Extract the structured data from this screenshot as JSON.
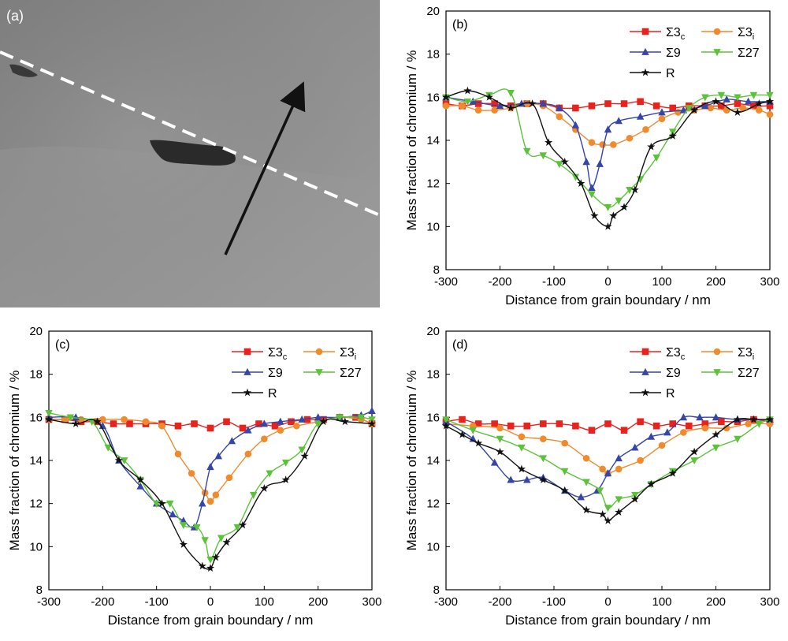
{
  "micrograph": {
    "label": "(a)",
    "colors": {
      "background": "#8f8f8f",
      "boundary_line": "#ffffff",
      "arrow": "#111111",
      "precipitate": "#2b2b2b"
    }
  },
  "series_style": {
    "S3c": {
      "color": "#e8231d",
      "marker": "square"
    },
    "S3i": {
      "color": "#f08a2c",
      "marker": "circle"
    },
    "S9": {
      "color": "#3545a8",
      "marker": "triangle-up"
    },
    "S27": {
      "color": "#5cc23a",
      "marker": "triangle-down"
    },
    "R": {
      "color": "#111111",
      "marker": "star"
    }
  },
  "chart_data": [
    {
      "panel": "(b)",
      "type": "line",
      "xlabel": "Distance from grain boundary / nm",
      "ylabel": "Mass fraction of chromium / %",
      "xlim": [
        -300,
        300
      ],
      "ylim": [
        8,
        20
      ],
      "xticks": [
        -300,
        -200,
        -100,
        0,
        100,
        200,
        300
      ],
      "yticks": [
        8,
        10,
        12,
        14,
        16,
        18,
        20
      ],
      "legend": "top-right",
      "series": [
        {
          "key": "S3c",
          "name": "Σ3",
          "sub": "c",
          "x": [
            -300,
            -270,
            -240,
            -210,
            -180,
            -150,
            -120,
            -90,
            -60,
            -30,
            0,
            30,
            60,
            90,
            120,
            150,
            180,
            210,
            240,
            270,
            300
          ],
          "y": [
            15.7,
            15.6,
            15.7,
            15.7,
            15.6,
            15.7,
            15.7,
            15.5,
            15.5,
            15.6,
            15.7,
            15.7,
            15.8,
            15.6,
            15.5,
            15.6,
            15.6,
            15.6,
            15.7,
            15.6,
            15.6
          ]
        },
        {
          "key": "S3i",
          "name": "Σ3",
          "sub": "i",
          "x": [
            -300,
            -270,
            -240,
            -210,
            -180,
            -150,
            -120,
            -90,
            -60,
            -30,
            -10,
            10,
            40,
            70,
            100,
            130,
            160,
            190,
            220,
            250,
            280,
            300
          ],
          "y": [
            15.6,
            15.6,
            15.4,
            15.4,
            15.5,
            15.7,
            15.6,
            15.1,
            14.5,
            13.9,
            13.8,
            13.8,
            14.1,
            14.5,
            15.0,
            15.3,
            15.4,
            15.5,
            15.4,
            15.5,
            15.4,
            15.2
          ]
        },
        {
          "key": "S9",
          "name": "Σ9",
          "x": [
            -300,
            -250,
            -200,
            -160,
            -120,
            -90,
            -60,
            -40,
            -30,
            -15,
            0,
            20,
            60,
            100,
            140,
            180,
            220,
            260,
            300
          ],
          "y": [
            16.0,
            15.8,
            15.6,
            15.7,
            15.7,
            15.5,
            14.7,
            13.0,
            11.8,
            12.9,
            14.5,
            14.9,
            15.1,
            15.3,
            15.4,
            15.6,
            15.9,
            15.8,
            15.8
          ]
        },
        {
          "key": "S27",
          "name": "Σ27",
          "x": [
            -300,
            -260,
            -220,
            -180,
            -150,
            -120,
            -90,
            -60,
            -30,
            0,
            20,
            40,
            60,
            90,
            120,
            150,
            180,
            210,
            240,
            270,
            300
          ],
          "y": [
            16.0,
            15.8,
            16.1,
            16.2,
            13.5,
            13.3,
            12.9,
            12.3,
            11.5,
            10.9,
            11.2,
            11.7,
            12.2,
            13.2,
            14.4,
            15.5,
            16.0,
            16.1,
            16.0,
            16.1,
            16.1
          ]
        },
        {
          "key": "R",
          "name": "R",
          "x": [
            -300,
            -260,
            -220,
            -180,
            -140,
            -110,
            -80,
            -50,
            -25,
            0,
            10,
            30,
            50,
            80,
            120,
            160,
            200,
            240,
            280,
            300
          ],
          "y": [
            16.0,
            16.3,
            16.0,
            15.5,
            15.7,
            13.9,
            13.0,
            12.0,
            10.5,
            10.0,
            10.5,
            10.9,
            11.7,
            13.7,
            14.2,
            15.4,
            15.8,
            15.3,
            15.7,
            15.8
          ]
        }
      ]
    },
    {
      "panel": "(c)",
      "type": "line",
      "xlabel": "Distance from grain boundary / nm",
      "ylabel": "Mass fraction of chromium / %",
      "xlim": [
        -300,
        300
      ],
      "ylim": [
        8,
        20
      ],
      "xticks": [
        -300,
        -200,
        -100,
        0,
        100,
        200,
        300
      ],
      "yticks": [
        8,
        10,
        12,
        14,
        16,
        18,
        20
      ],
      "legend": "top-right",
      "series": [
        {
          "key": "S3c",
          "name": "Σ3",
          "sub": "c",
          "x": [
            -300,
            -270,
            -240,
            -210,
            -180,
            -150,
            -120,
            -90,
            -60,
            -30,
            0,
            30,
            60,
            90,
            120,
            150,
            180,
            210,
            240,
            270,
            300
          ],
          "y": [
            15.9,
            15.9,
            15.8,
            15.8,
            15.7,
            15.7,
            15.7,
            15.7,
            15.6,
            15.7,
            15.5,
            15.8,
            15.5,
            15.7,
            15.6,
            15.8,
            15.9,
            15.9,
            16.0,
            16.0,
            15.7
          ]
        },
        {
          "key": "S3i",
          "name": "Σ3",
          "sub": "i",
          "x": [
            -300,
            -270,
            -240,
            -200,
            -160,
            -120,
            -90,
            -60,
            -35,
            -10,
            0,
            10,
            35,
            70,
            100,
            130,
            160,
            200,
            240,
            280,
            300
          ],
          "y": [
            15.9,
            15.9,
            15.9,
            15.9,
            15.9,
            15.8,
            15.6,
            14.3,
            13.4,
            12.5,
            12.1,
            12.4,
            13.2,
            14.3,
            15.0,
            15.4,
            15.6,
            15.8,
            16.0,
            15.9,
            15.7
          ]
        },
        {
          "key": "S9",
          "name": "Σ9",
          "x": [
            -300,
            -250,
            -200,
            -170,
            -130,
            -100,
            -70,
            -50,
            -30,
            -15,
            0,
            15,
            40,
            70,
            100,
            130,
            170,
            200,
            240,
            280,
            300
          ],
          "y": [
            16.0,
            16.0,
            15.6,
            14.0,
            12.8,
            12.0,
            11.5,
            11.2,
            10.9,
            12.0,
            13.7,
            14.2,
            14.9,
            15.4,
            15.7,
            15.8,
            15.9,
            16.0,
            16.0,
            16.1,
            16.3
          ]
        },
        {
          "key": "S27",
          "name": "Σ27",
          "x": [
            -300,
            -260,
            -220,
            -190,
            -160,
            -130,
            -100,
            -75,
            -50,
            -25,
            -10,
            0,
            20,
            50,
            80,
            110,
            140,
            170,
            200,
            240,
            280,
            300
          ],
          "y": [
            16.2,
            16.0,
            15.8,
            14.6,
            14.0,
            13.1,
            12.0,
            12.0,
            11.0,
            10.9,
            10.3,
            9.4,
            10.4,
            10.9,
            12.4,
            13.4,
            13.9,
            14.5,
            15.7,
            16.0,
            16.0,
            15.9
          ]
        },
        {
          "key": "R",
          "name": "R",
          "x": [
            -300,
            -250,
            -210,
            -170,
            -130,
            -90,
            -50,
            -15,
            0,
            10,
            30,
            60,
            100,
            140,
            175,
            210,
            250,
            300
          ],
          "y": [
            15.9,
            15.7,
            15.8,
            14.0,
            13.1,
            12.0,
            10.1,
            9.1,
            9.0,
            9.5,
            10.2,
            11.0,
            12.7,
            13.1,
            14.2,
            15.8,
            15.8,
            15.7
          ]
        }
      ]
    },
    {
      "panel": "(d)",
      "type": "line",
      "xlabel": "Distance from grain boundary / nm",
      "ylabel": "Mass fraction of chromium / %",
      "xlim": [
        -300,
        300
      ],
      "ylim": [
        8,
        20
      ],
      "xticks": [
        -300,
        -200,
        -100,
        0,
        100,
        200,
        300
      ],
      "yticks": [
        8,
        10,
        12,
        14,
        16,
        18,
        20
      ],
      "legend": "top-right",
      "series": [
        {
          "key": "S3c",
          "name": "Σ3",
          "sub": "c",
          "x": [
            -300,
            -270,
            -240,
            -210,
            -180,
            -150,
            -120,
            -90,
            -60,
            -30,
            0,
            30,
            60,
            90,
            120,
            150,
            180,
            210,
            240,
            270,
            300
          ],
          "y": [
            15.8,
            15.9,
            15.7,
            15.7,
            15.6,
            15.6,
            15.7,
            15.7,
            15.6,
            15.4,
            15.7,
            15.4,
            15.8,
            15.6,
            15.7,
            15.6,
            15.7,
            15.8,
            15.8,
            15.9,
            15.8
          ]
        },
        {
          "key": "S3i",
          "name": "Σ3",
          "sub": "i",
          "x": [
            -300,
            -250,
            -200,
            -160,
            -120,
            -80,
            -40,
            -10,
            0,
            20,
            60,
            100,
            140,
            180,
            220,
            260,
            300
          ],
          "y": [
            15.7,
            15.6,
            15.5,
            15.1,
            15.0,
            14.8,
            14.1,
            13.6,
            13.4,
            13.6,
            14.0,
            14.7,
            15.3,
            15.5,
            15.5,
            15.7,
            15.7
          ]
        },
        {
          "key": "S9",
          "name": "Σ9",
          "x": [
            -300,
            -250,
            -210,
            -180,
            -150,
            -120,
            -80,
            -50,
            -20,
            0,
            20,
            50,
            80,
            110,
            140,
            170,
            200,
            240,
            300
          ],
          "y": [
            15.8,
            15.0,
            13.9,
            13.1,
            13.1,
            13.2,
            12.6,
            12.3,
            12.6,
            13.4,
            14.1,
            14.6,
            15.1,
            15.3,
            16.0,
            16.0,
            16.0,
            15.9,
            15.9
          ]
        },
        {
          "key": "S27",
          "name": "Σ27",
          "x": [
            -300,
            -250,
            -200,
            -160,
            -120,
            -80,
            -40,
            -15,
            0,
            20,
            50,
            80,
            120,
            160,
            200,
            240,
            280,
            300
          ],
          "y": [
            15.9,
            15.4,
            15.0,
            14.6,
            14.1,
            13.5,
            13.0,
            12.6,
            11.8,
            12.2,
            12.4,
            12.9,
            13.5,
            14.0,
            14.6,
            15.0,
            15.7,
            15.9
          ]
        },
        {
          "key": "R",
          "name": "R",
          "x": [
            -300,
            -270,
            -240,
            -200,
            -160,
            -120,
            -80,
            -40,
            -10,
            0,
            20,
            50,
            80,
            120,
            160,
            200,
            240,
            270,
            300
          ],
          "y": [
            15.6,
            15.2,
            14.8,
            14.4,
            13.6,
            13.1,
            12.6,
            11.7,
            11.5,
            11.2,
            11.6,
            12.2,
            12.9,
            13.4,
            14.4,
            15.2,
            15.9,
            15.9,
            15.9
          ]
        }
      ]
    }
  ]
}
